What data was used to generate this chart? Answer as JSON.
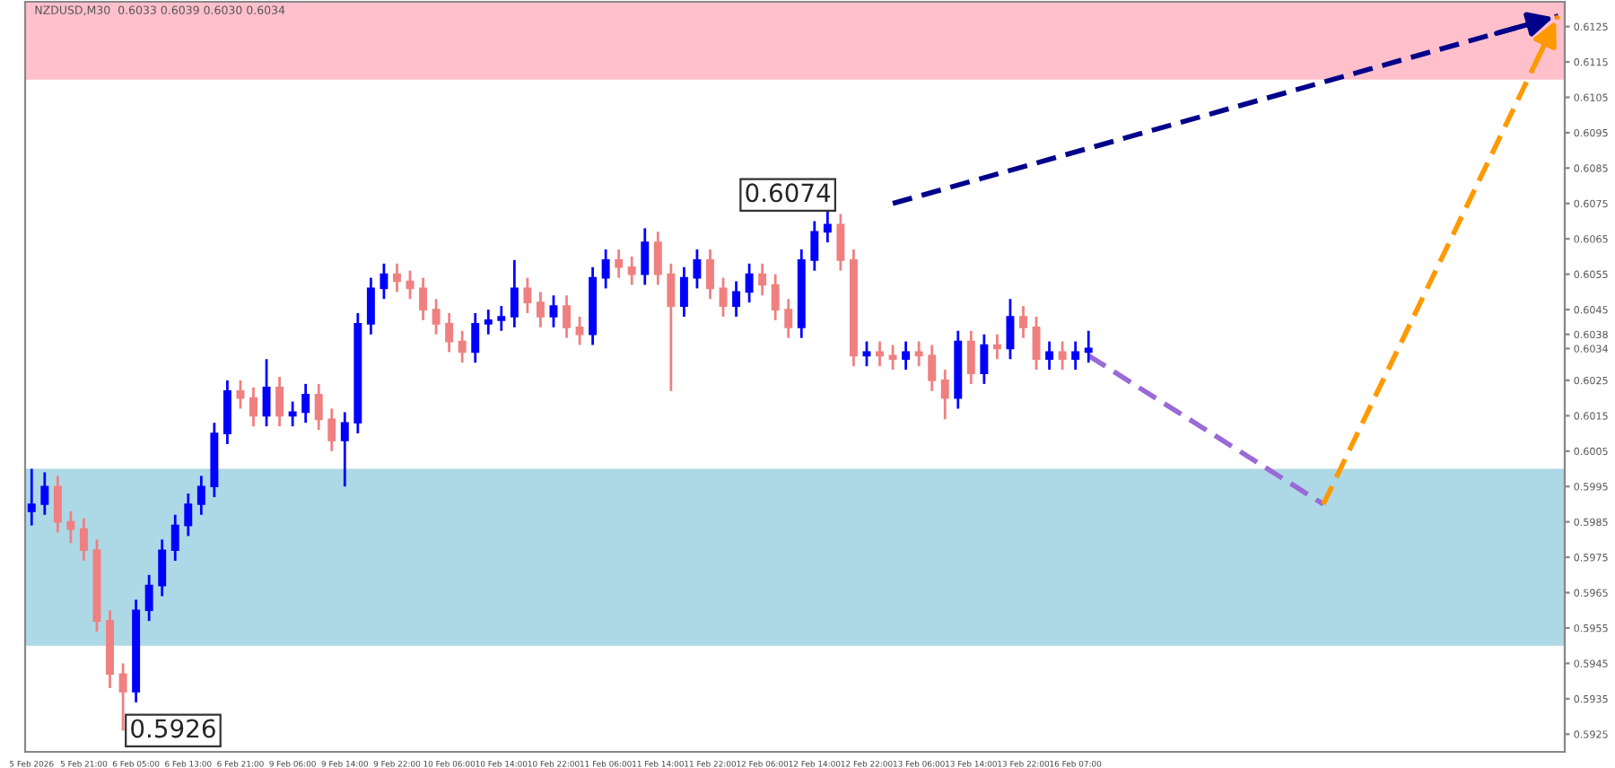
{
  "chart_data": {
    "type": "candlestick",
    "title": "NZDUSD,M30  0.6033 0.6039 0.6030 0.6034",
    "categories": [
      "5 Feb 2026",
      null,
      null,
      null,
      "5 Feb 21:00",
      null,
      null,
      null,
      "6 Feb 05:00",
      null,
      null,
      null,
      "6 Feb 13:00",
      null,
      null,
      null,
      "6 Feb 21:00",
      null,
      null,
      null,
      "9 Feb 06:00",
      null,
      null,
      null,
      "9 Feb 14:00",
      null,
      null,
      null,
      "9 Feb 22:00",
      null,
      null,
      null,
      "10 Feb 06:00",
      null,
      null,
      null,
      "10 Feb 14:00",
      null,
      null,
      null,
      "10 Feb 22:00",
      null,
      null,
      null,
      "11 Feb 06:00",
      null,
      null,
      null,
      "11 Feb 14:00",
      null,
      null,
      null,
      "11 Feb 22:00",
      null,
      null,
      null,
      "12 Feb 06:00",
      null,
      null,
      null,
      "12 Feb 14:00",
      null,
      null,
      null,
      "12 Feb 22:00",
      null,
      null,
      null,
      "13 Feb 06:00",
      null,
      null,
      null,
      "13 Feb 14:00",
      null,
      null,
      null,
      "13 Feb 22:00",
      null,
      null,
      null,
      "16 Feb 07:00",
      null,
      null,
      null,
      null,
      null,
      null,
      null,
      null,
      null,
      null,
      null,
      null,
      null,
      null,
      null,
      null,
      null,
      null,
      null,
      null,
      null,
      null,
      null,
      null,
      null,
      null,
      null,
      null,
      null,
      null,
      null,
      null,
      null,
      null,
      null,
      null,
      null
    ],
    "ohlc": [
      [
        0.5988,
        0.6,
        0.5984,
        0.599
      ],
      [
        0.599,
        0.5999,
        0.5987,
        0.5995
      ],
      [
        0.5995,
        0.5998,
        0.5982,
        0.5985
      ],
      [
        0.5985,
        0.5988,
        0.5979,
        0.5983
      ],
      [
        0.5983,
        0.5986,
        0.5974,
        0.5977
      ],
      [
        0.5977,
        0.598,
        0.5954,
        0.5957
      ],
      [
        0.5957,
        0.596,
        0.5938,
        0.5942
      ],
      [
        0.5942,
        0.5945,
        0.5926,
        0.5937
      ],
      [
        0.5937,
        0.5963,
        0.5934,
        0.596
      ],
      [
        0.596,
        0.597,
        0.5957,
        0.5967
      ],
      [
        0.5967,
        0.598,
        0.5964,
        0.5977
      ],
      [
        0.5977,
        0.5987,
        0.5974,
        0.5984
      ],
      [
        0.5984,
        0.5993,
        0.5981,
        0.599
      ],
      [
        0.599,
        0.5998,
        0.5987,
        0.5995
      ],
      [
        0.5995,
        0.6013,
        0.5992,
        0.601
      ],
      [
        0.601,
        0.6025,
        0.6007,
        0.6022
      ],
      [
        0.6022,
        0.6025,
        0.6017,
        0.602
      ],
      [
        0.602,
        0.6023,
        0.6012,
        0.6015
      ],
      [
        0.6015,
        0.6031,
        0.6012,
        0.6023
      ],
      [
        0.6023,
        0.6026,
        0.6012,
        0.6015
      ],
      [
        0.6015,
        0.6019,
        0.6012,
        0.6016
      ],
      [
        0.6016,
        0.6024,
        0.6013,
        0.6021
      ],
      [
        0.6021,
        0.6024,
        0.6011,
        0.6014
      ],
      [
        0.6014,
        0.6017,
        0.6005,
        0.6008
      ],
      [
        0.6008,
        0.6016,
        0.5995,
        0.6013
      ],
      [
        0.6013,
        0.6044,
        0.601,
        0.6041
      ],
      [
        0.6041,
        0.6054,
        0.6038,
        0.6051
      ],
      [
        0.6051,
        0.6058,
        0.6048,
        0.6055
      ],
      [
        0.6055,
        0.6058,
        0.605,
        0.6053
      ],
      [
        0.6053,
        0.6056,
        0.6048,
        0.6051
      ],
      [
        0.6051,
        0.6054,
        0.6042,
        0.6045
      ],
      [
        0.6045,
        0.6048,
        0.6038,
        0.6041
      ],
      [
        0.6041,
        0.6044,
        0.6033,
        0.6036
      ],
      [
        0.6036,
        0.6039,
        0.603,
        0.6033
      ],
      [
        0.6033,
        0.6044,
        0.603,
        0.6041
      ],
      [
        0.6041,
        0.6045,
        0.6038,
        0.6042
      ],
      [
        0.6042,
        0.6046,
        0.6039,
        0.6043
      ],
      [
        0.6043,
        0.6059,
        0.604,
        0.6051
      ],
      [
        0.6051,
        0.6054,
        0.6044,
        0.6047
      ],
      [
        0.6047,
        0.605,
        0.604,
        0.6043
      ],
      [
        0.6043,
        0.6049,
        0.604,
        0.6046
      ],
      [
        0.6046,
        0.6049,
        0.6037,
        0.604
      ],
      [
        0.604,
        0.6043,
        0.6035,
        0.6038
      ],
      [
        0.6038,
        0.6057,
        0.6035,
        0.6054
      ],
      [
        0.6054,
        0.6062,
        0.6051,
        0.6059
      ],
      [
        0.6059,
        0.6062,
        0.6054,
        0.6057
      ],
      [
        0.6057,
        0.606,
        0.6052,
        0.6055
      ],
      [
        0.6055,
        0.6068,
        0.6052,
        0.6064
      ],
      [
        0.6064,
        0.6067,
        0.6052,
        0.6055
      ],
      [
        0.6055,
        0.6058,
        0.6022,
        0.6046
      ],
      [
        0.6046,
        0.6057,
        0.6043,
        0.6054
      ],
      [
        0.6054,
        0.6062,
        0.6051,
        0.6059
      ],
      [
        0.6059,
        0.6062,
        0.6048,
        0.6051
      ],
      [
        0.6051,
        0.6054,
        0.6043,
        0.6046
      ],
      [
        0.6046,
        0.6053,
        0.6043,
        0.605
      ],
      [
        0.605,
        0.6058,
        0.6047,
        0.6055
      ],
      [
        0.6055,
        0.6058,
        0.6049,
        0.6052
      ],
      [
        0.6052,
        0.6055,
        0.6042,
        0.6045
      ],
      [
        0.6045,
        0.6048,
        0.6037,
        0.604
      ],
      [
        0.604,
        0.6062,
        0.6037,
        0.6059
      ],
      [
        0.6059,
        0.607,
        0.6056,
        0.6067
      ],
      [
        0.6067,
        0.6074,
        0.6064,
        0.6069
      ],
      [
        0.6069,
        0.6072,
        0.6056,
        0.6059
      ],
      [
        0.6059,
        0.6062,
        0.6029,
        0.6032
      ],
      [
        0.6032,
        0.6036,
        0.6029,
        0.6033
      ],
      [
        0.6033,
        0.6036,
        0.6029,
        0.6032
      ],
      [
        0.6032,
        0.6035,
        0.6028,
        0.6031
      ],
      [
        0.6031,
        0.6036,
        0.6028,
        0.6033
      ],
      [
        0.6033,
        0.6036,
        0.6029,
        0.6032
      ],
      [
        0.6032,
        0.6035,
        0.6022,
        0.6025
      ],
      [
        0.6025,
        0.6028,
        0.6014,
        0.602
      ],
      [
        0.602,
        0.6039,
        0.6017,
        0.6036
      ],
      [
        0.6036,
        0.6039,
        0.6024,
        0.6027
      ],
      [
        0.6027,
        0.6038,
        0.6024,
        0.6035
      ],
      [
        0.6035,
        0.6038,
        0.6031,
        0.6034
      ],
      [
        0.6034,
        0.6048,
        0.6031,
        0.6043
      ],
      [
        0.6043,
        0.6046,
        0.6037,
        0.604
      ],
      [
        0.604,
        0.6043,
        0.6028,
        0.6031
      ],
      [
        0.6031,
        0.6036,
        0.6028,
        0.6033
      ],
      [
        0.6033,
        0.6036,
        0.6028,
        0.6031
      ],
      [
        0.6031,
        0.6036,
        0.6028,
        0.6033
      ],
      [
        0.6033,
        0.6039,
        0.603,
        0.6034
      ],
      null,
      null,
      null,
      null,
      null,
      null,
      null,
      null,
      null,
      null,
      null,
      null,
      null,
      null,
      null,
      null,
      null,
      null,
      null,
      null,
      null,
      null,
      null,
      null,
      null,
      null,
      null,
      null,
      null,
      null,
      null,
      null,
      null,
      null,
      null,
      null
    ],
    "colors": [
      "#0000ff",
      "#0000ff",
      "#f08080",
      "#f08080",
      "#f08080",
      "#f08080",
      "#f08080",
      "#f08080",
      "#0000ff",
      "#0000ff",
      "#0000ff",
      "#0000ff",
      "#0000ff",
      "#0000ff",
      "#0000ff",
      "#0000ff",
      "#f08080",
      "#f08080",
      "#0000ff",
      "#f08080",
      "#0000ff",
      "#0000ff",
      "#f08080",
      "#f08080",
      "#0000ff",
      "#0000ff",
      "#0000ff",
      "#0000ff",
      "#f08080",
      "#f08080",
      "#f08080",
      "#f08080",
      "#f08080",
      "#f08080",
      "#0000ff",
      "#0000ff",
      "#0000ff",
      "#0000ff",
      "#f08080",
      "#f08080",
      "#0000ff",
      "#f08080",
      "#f08080",
      "#0000ff",
      "#0000ff",
      "#f08080",
      "#f08080",
      "#0000ff",
      "#f08080",
      "#f08080",
      "#0000ff",
      "#0000ff",
      "#f08080",
      "#f08080",
      "#0000ff",
      "#0000ff",
      "#f08080",
      "#f08080",
      "#f08080",
      "#0000ff",
      "#0000ff",
      "#0000ff",
      "#f08080",
      "#f08080",
      "#0000ff",
      "#f08080",
      "#f08080",
      "#0000ff",
      "#f08080",
      "#f08080",
      "#f08080",
      "#0000ff",
      "#f08080",
      "#0000ff",
      "#f08080",
      "#0000ff",
      "#f08080",
      "#f08080",
      "#0000ff",
      "#f08080",
      "#0000ff",
      "#0000ff",
      null,
      null,
      null,
      null,
      null,
      null,
      null,
      null,
      null,
      null,
      null,
      null,
      null,
      null,
      null,
      null,
      null,
      null,
      null,
      null,
      null,
      null,
      null,
      null,
      null,
      null,
      null,
      null,
      null,
      null,
      null,
      null,
      null,
      null,
      null,
      null
    ],
    "series": [
      {
        "type": "line",
        "color": "#00008b",
        "line_style": "dashed",
        "values": [
          null,
          null,
          null,
          null,
          null,
          null,
          null,
          null,
          null,
          null,
          null,
          null,
          null,
          null,
          null,
          null,
          null,
          null,
          null,
          null,
          null,
          null,
          null,
          null,
          null,
          null,
          null,
          null,
          null,
          null,
          null,
          null,
          null,
          null,
          null,
          null,
          null,
          null,
          null,
          null,
          null,
          null,
          null,
          null,
          null,
          null,
          null,
          null,
          null,
          null,
          null,
          null,
          null,
          null,
          null,
          null,
          null,
          null,
          null,
          null,
          null,
          null,
          null,
          null,
          null,
          null,
          0.6075,
          null,
          null,
          null,
          null,
          null,
          null,
          null,
          null,
          null,
          null,
          null,
          null,
          null,
          null,
          null,
          null,
          null,
          null,
          null,
          null,
          null,
          null,
          null,
          null,
          null,
          null,
          null,
          null,
          null,
          null,
          null,
          null,
          null,
          null,
          null,
          null,
          null,
          null,
          null,
          null,
          null,
          null,
          null,
          null,
          null,
          null,
          null,
          null,
          null,
          null,
          0.6128
        ]
      },
      {
        "type": "line",
        "color": "#9a6ad6",
        "line_style": "dashed",
        "values": [
          null,
          null,
          null,
          null,
          null,
          null,
          null,
          null,
          null,
          null,
          null,
          null,
          null,
          null,
          null,
          null,
          null,
          null,
          null,
          null,
          null,
          null,
          null,
          null,
          null,
          null,
          null,
          null,
          null,
          null,
          null,
          null,
          null,
          null,
          null,
          null,
          null,
          null,
          null,
          null,
          null,
          null,
          null,
          null,
          null,
          null,
          null,
          null,
          null,
          null,
          null,
          null,
          null,
          null,
          null,
          null,
          null,
          null,
          null,
          null,
          null,
          null,
          null,
          null,
          null,
          null,
          null,
          null,
          null,
          null,
          null,
          null,
          null,
          null,
          null,
          null,
          null,
          null,
          null,
          null,
          null,
          0.6032,
          null,
          null,
          null,
          null,
          null,
          null,
          null,
          null,
          null,
          null,
          null,
          null,
          null,
          null,
          null,
          null,
          null,
          0.599,
          null,
          null,
          null,
          null,
          null,
          null,
          null,
          null,
          null,
          null,
          null,
          null,
          null,
          null,
          null,
          null,
          null,
          null
        ]
      },
      {
        "type": "line",
        "color": "#ff9900",
        "line_style": "dashed",
        "values": [
          null,
          null,
          null,
          null,
          null,
          null,
          null,
          null,
          null,
          null,
          null,
          null,
          null,
          null,
          null,
          null,
          null,
          null,
          null,
          null,
          null,
          null,
          null,
          null,
          null,
          null,
          null,
          null,
          null,
          null,
          null,
          null,
          null,
          null,
          null,
          null,
          null,
          null,
          null,
          null,
          null,
          null,
          null,
          null,
          null,
          null,
          null,
          null,
          null,
          null,
          null,
          null,
          null,
          null,
          null,
          null,
          null,
          null,
          null,
          null,
          null,
          null,
          null,
          null,
          null,
          null,
          null,
          null,
          null,
          null,
          null,
          null,
          null,
          null,
          null,
          null,
          null,
          null,
          null,
          null,
          null,
          null,
          null,
          null,
          null,
          null,
          null,
          null,
          null,
          null,
          null,
          null,
          null,
          null,
          null,
          null,
          null,
          null,
          null,
          0.599,
          null,
          null,
          null,
          null,
          null,
          null,
          null,
          null,
          null,
          null,
          null,
          null,
          null,
          null,
          null,
          null,
          null,
          0.6128
        ]
      }
    ],
    "ylim": [
      0.592,
      0.6132
    ],
    "yticks": [
      0.5925,
      0.5935,
      0.5945,
      0.5955,
      0.5965,
      0.5975,
      0.5985,
      0.5995,
      0.6005,
      0.6015,
      0.6025,
      0.6034,
      0.6038,
      0.6045,
      0.6055,
      0.6065,
      0.6075,
      0.6085,
      0.6095,
      0.6105,
      0.6115,
      0.6125
    ],
    "bands": [
      {
        "axis": "y",
        "from": 0.611,
        "to": 0.6132,
        "color": "#ffc0cb"
      },
      {
        "axis": "y",
        "from": 0.595,
        "to": 0.6,
        "color": "#add8e6"
      }
    ],
    "annotations": [
      "0.6074",
      "0.5926"
    ],
    "grid": false,
    "legend": false
  }
}
